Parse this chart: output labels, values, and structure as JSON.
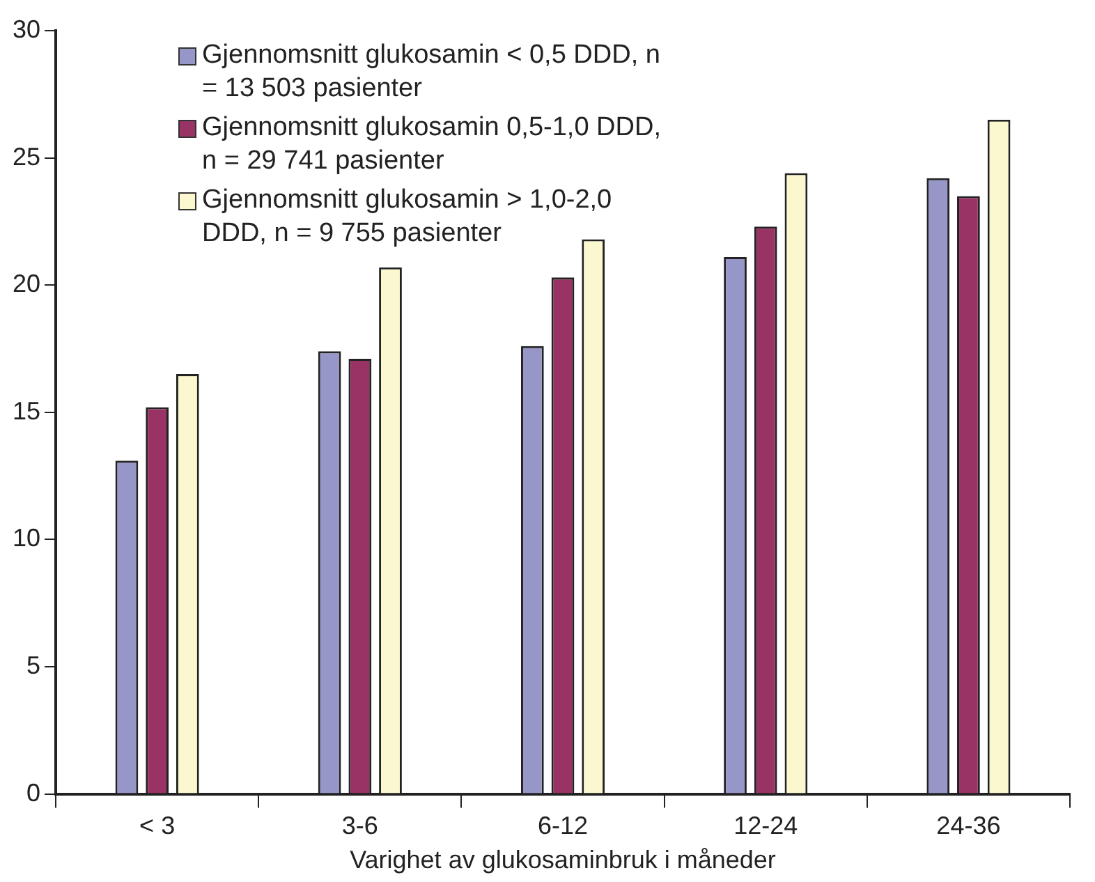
{
  "chart_data": {
    "type": "bar",
    "xlabel": "Varighet av glukosaminbruk i måneder",
    "categories": [
      "< 3",
      "3-6",
      "6-12",
      "12-24",
      "24-36"
    ],
    "series": [
      {
        "name": "Gjennomsnitt glukosamin < 0,5 DDD, n = 13 503 pasienter",
        "color": "#9696c8",
        "values": [
          13.1,
          17.4,
          17.6,
          21.1,
          24.2
        ]
      },
      {
        "name": "Gjennomsnitt glukosamin 0,5-1,0 DDD, n = 29 741 pasienter",
        "color": "#993366",
        "values": [
          15.2,
          17.1,
          20.3,
          22.3,
          23.5
        ]
      },
      {
        "name": "Gjennomsnitt glukosamin > 1,0-2,0 DDD, n = 9 755 pasienter",
        "color": "#fbf8cf",
        "values": [
          16.5,
          20.7,
          21.8,
          24.4,
          26.5
        ]
      }
    ],
    "ylim": [
      0,
      30
    ],
    "yticks": [
      0,
      5,
      10,
      15,
      20,
      25,
      30
    ],
    "grid": false,
    "legend": "top left"
  }
}
